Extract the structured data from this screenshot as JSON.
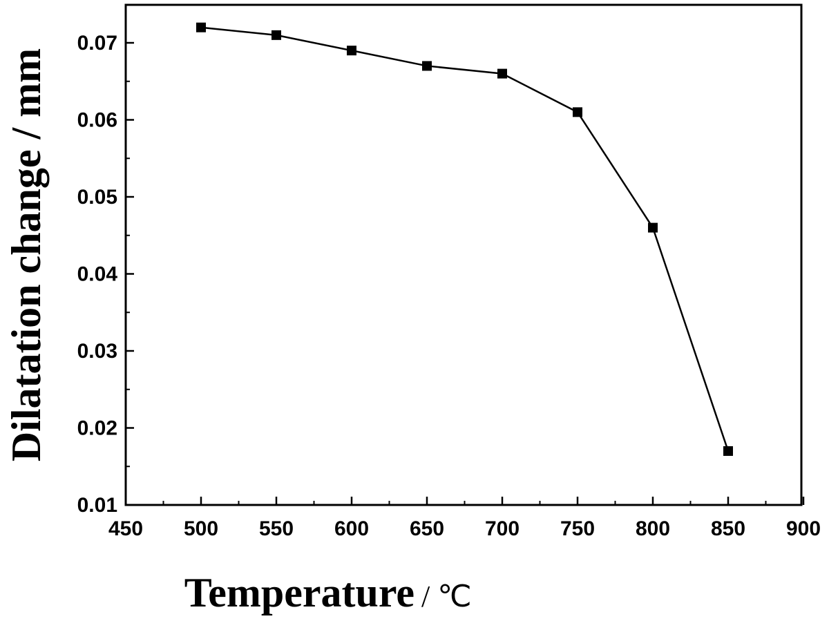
{
  "chart_data": {
    "type": "line",
    "title": "",
    "xlabel": "Temperature",
    "xunit": "/ ℃",
    "ylabel": "Dilatation change / mm",
    "xlim": [
      450,
      900
    ],
    "ylim": [
      0.01,
      0.075
    ],
    "xticks": [
      "450",
      "500",
      "550",
      "600",
      "650",
      "700",
      "750",
      "800",
      "850",
      "900"
    ],
    "yticks": [
      "0.01",
      "0.02",
      "0.03",
      "0.04",
      "0.05",
      "0.06",
      "0.07"
    ],
    "grid": false,
    "legend": "none",
    "marker": "square",
    "line_color": "#000000",
    "series": [
      {
        "x": [
          500,
          550,
          600,
          650,
          700,
          750,
          800,
          850
        ],
        "y": [
          0.072,
          0.071,
          0.069,
          0.067,
          0.066,
          0.061,
          0.046,
          0.017
        ]
      }
    ]
  }
}
